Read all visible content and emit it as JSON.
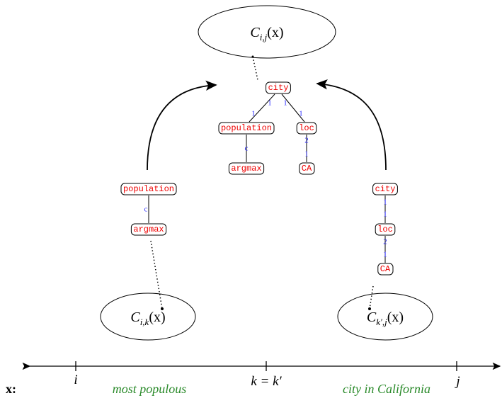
{
  "ellipses": [
    {
      "base": "C",
      "sub": "i,j",
      "arg": "(x)"
    },
    {
      "base": "C",
      "sub": "i,k",
      "arg": "(x)"
    },
    {
      "base": "C",
      "sub": "k′,j",
      "arg": "(x)"
    }
  ],
  "trees": [
    {
      "nodes": [
        {
          "label": "city"
        },
        {
          "label": "population"
        },
        {
          "label": "argmax"
        },
        {
          "label": "loc"
        },
        {
          "label": "CA"
        }
      ],
      "edges": [
        {
          "labels": [
            "1",
            "1"
          ]
        },
        {
          "labels": [
            "c"
          ]
        },
        {
          "labels": [
            "1",
            "1"
          ]
        },
        {
          "labels": [
            "2",
            "1"
          ]
        }
      ]
    },
    {
      "nodes": [
        {
          "label": "population"
        },
        {
          "label": "argmax"
        }
      ],
      "edges": [
        {
          "labels": [
            "c"
          ]
        }
      ]
    },
    {
      "nodes": [
        {
          "label": "city"
        },
        {
          "label": "loc"
        },
        {
          "label": "CA"
        }
      ],
      "edges": [
        {
          "labels": [
            "1",
            "1"
          ]
        },
        {
          "labels": [
            "2",
            "1"
          ]
        }
      ]
    }
  ],
  "axis": {
    "label": "x:",
    "ticks": [
      "i",
      "k = k′",
      "j"
    ],
    "phrases": [
      "most populous",
      "city in California"
    ]
  }
}
